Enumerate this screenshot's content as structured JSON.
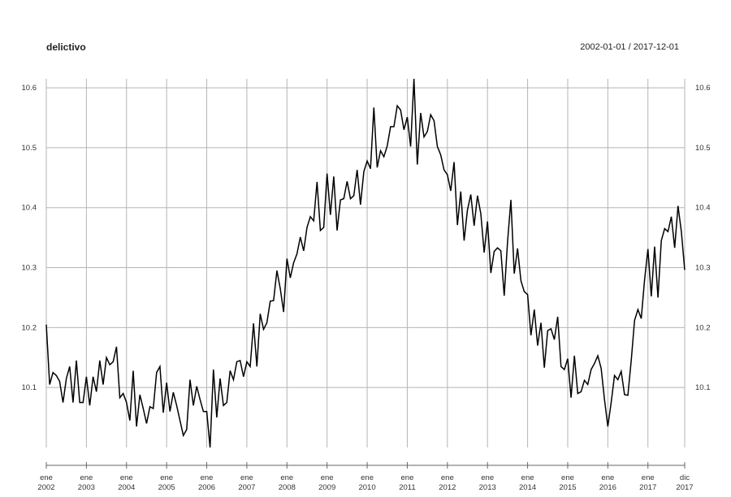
{
  "header": {
    "title": "delictivo",
    "date_range": "2002-01-01 / 2017-12-01"
  },
  "chart_data": {
    "type": "line",
    "title": "delictivo",
    "subtitle": "2002-01-01 / 2017-12-01",
    "xlabel": "",
    "ylabel": "",
    "grid": true,
    "x_range": [
      "2002-01",
      "2017-12"
    ],
    "ylim": [
      10.0,
      10.615
    ],
    "y_ticks": [
      "10.1",
      "10.2",
      "10.3",
      "10.4",
      "10.5",
      "10.6"
    ],
    "x_ticks": [
      {
        "date": "2002-01",
        "month": "ene",
        "year": "2002"
      },
      {
        "date": "2003-01",
        "month": "ene",
        "year": "2003"
      },
      {
        "date": "2004-01",
        "month": "ene",
        "year": "2004"
      },
      {
        "date": "2005-01",
        "month": "ene",
        "year": "2005"
      },
      {
        "date": "2006-01",
        "month": "ene",
        "year": "2006"
      },
      {
        "date": "2007-01",
        "month": "ene",
        "year": "2007"
      },
      {
        "date": "2008-01",
        "month": "ene",
        "year": "2008"
      },
      {
        "date": "2009-01",
        "month": "ene",
        "year": "2009"
      },
      {
        "date": "2010-01",
        "month": "ene",
        "year": "2010"
      },
      {
        "date": "2011-01",
        "month": "ene",
        "year": "2011"
      },
      {
        "date": "2012-01",
        "month": "ene",
        "year": "2012"
      },
      {
        "date": "2013-01",
        "month": "ene",
        "year": "2013"
      },
      {
        "date": "2014-01",
        "month": "ene",
        "year": "2014"
      },
      {
        "date": "2015-01",
        "month": "ene",
        "year": "2015"
      },
      {
        "date": "2016-01",
        "month": "ene",
        "year": "2016"
      },
      {
        "date": "2017-01",
        "month": "ene",
        "year": "2017"
      },
      {
        "date": "2017-12",
        "month": "dic",
        "year": "2017"
      }
    ],
    "series": [
      {
        "color": "#000000",
        "start": "2002-01",
        "frequency": "monthly",
        "values": [
          10.205,
          10.105,
          10.125,
          10.12,
          10.11,
          10.075,
          10.115,
          10.135,
          10.075,
          10.145,
          10.075,
          10.075,
          10.118,
          10.07,
          10.118,
          10.093,
          10.145,
          10.105,
          10.15,
          10.138,
          10.143,
          10.168,
          10.083,
          10.09,
          10.075,
          10.045,
          10.128,
          10.035,
          10.088,
          10.065,
          10.04,
          10.068,
          10.065,
          10.125,
          10.135,
          10.058,
          10.108,
          10.06,
          10.092,
          10.07,
          10.045,
          10.02,
          10.03,
          10.113,
          10.07,
          10.102,
          10.08,
          10.06,
          10.06,
          10.0,
          10.13,
          10.05,
          10.115,
          10.07,
          10.075,
          10.128,
          10.113,
          10.143,
          10.145,
          10.118,
          10.143,
          10.135,
          10.207,
          10.135,
          10.223,
          10.197,
          10.208,
          10.244,
          10.245,
          10.295,
          10.265,
          10.226,
          10.315,
          10.283,
          10.308,
          10.323,
          10.351,
          10.328,
          10.367,
          10.385,
          10.378,
          10.443,
          10.362,
          10.367,
          10.457,
          10.388,
          10.452,
          10.362,
          10.413,
          10.415,
          10.444,
          10.415,
          10.42,
          10.463,
          10.405,
          10.46,
          10.478,
          10.465,
          10.567,
          10.467,
          10.495,
          10.485,
          10.503,
          10.535,
          10.535,
          10.57,
          10.563,
          10.53,
          10.551,
          10.502,
          10.615,
          10.472,
          10.558,
          10.518,
          10.527,
          10.555,
          10.545,
          10.502,
          10.488,
          10.463,
          10.455,
          10.428,
          10.476,
          10.371,
          10.427,
          10.345,
          10.396,
          10.422,
          10.37,
          10.42,
          10.39,
          10.325,
          10.377,
          10.291,
          10.327,
          10.333,
          10.328,
          10.253,
          10.343,
          10.413,
          10.29,
          10.332,
          10.278,
          10.26,
          10.255,
          10.187,
          10.23,
          10.17,
          10.208,
          10.133,
          10.195,
          10.198,
          10.18,
          10.218,
          10.135,
          10.13,
          10.148,
          10.083,
          10.153,
          10.09,
          10.093,
          10.112,
          10.105,
          10.13,
          10.14,
          10.153,
          10.132,
          10.08,
          10.035,
          10.075,
          10.12,
          10.113,
          10.127,
          10.088,
          10.087,
          10.145,
          10.212,
          10.23,
          10.215,
          10.28,
          10.331,
          10.252,
          10.335,
          10.25,
          10.345,
          10.365,
          10.36,
          10.385,
          10.333,
          10.403,
          10.36,
          10.296
        ]
      }
    ]
  }
}
